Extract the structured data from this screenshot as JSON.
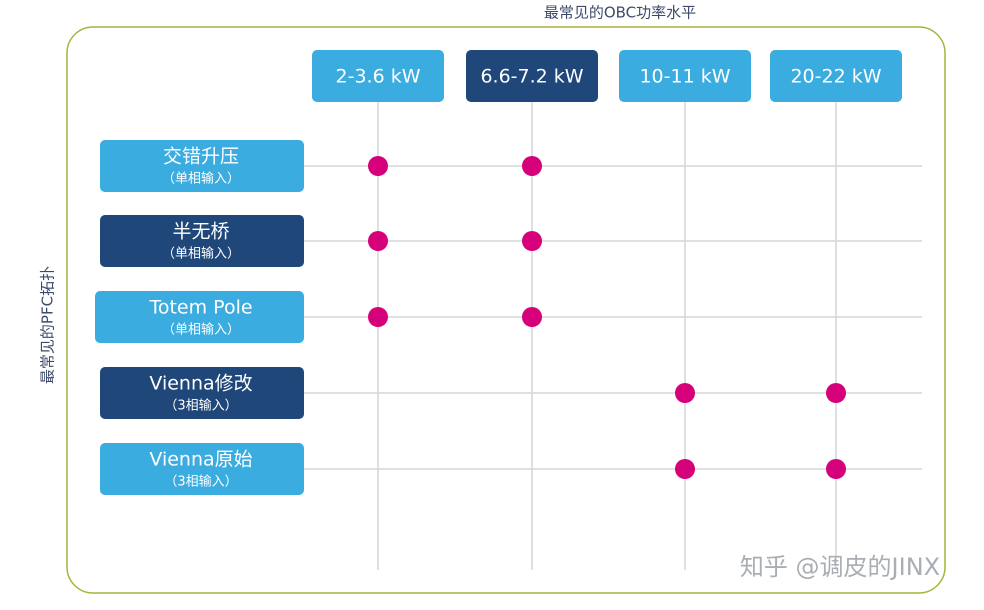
{
  "title": "最常见的OBC功率水平",
  "y_label": "最常见的PFC拓扑",
  "columns": [
    "2-3.6 kW",
    "6.6-7.2 kW",
    "10-11 kW",
    "20-22 kW"
  ],
  "rows": [
    {
      "label": "交错升压",
      "sublabel": "（单相输入）"
    },
    {
      "label": "半无桥",
      "sublabel": "（单相输入）"
    },
    {
      "label": "Totem Pole",
      "sublabel": "（单相输入）"
    },
    {
      "label": "Vienna修改",
      "sublabel": "（3相输入）"
    },
    {
      "label": "Vienna原始",
      "sublabel": "（3相输入）"
    }
  ],
  "matrix": [
    [
      true,
      true,
      false,
      false
    ],
    [
      true,
      true,
      false,
      false
    ],
    [
      true,
      true,
      false,
      false
    ],
    [
      false,
      false,
      true,
      true
    ],
    [
      false,
      false,
      true,
      true
    ]
  ],
  "watermark": "知乎 @调皮的JINX"
}
